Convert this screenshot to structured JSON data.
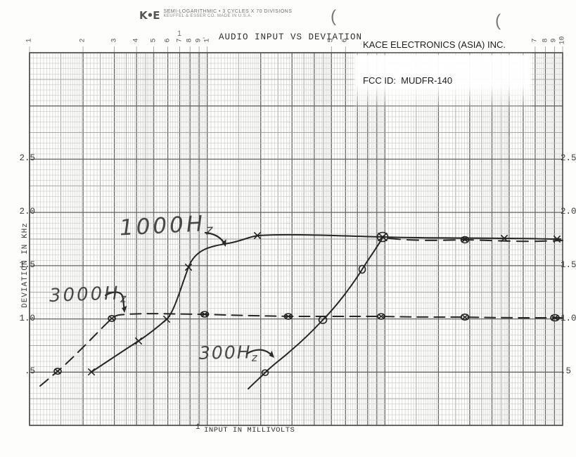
{
  "header": {
    "logo_text": "K•E",
    "paper_line1": "SEMI-LOGARITHMIC • 3 CYCLES X 70 DIVISIONS",
    "paper_line2": "KEUFFEL & ESSER CO.  MADE IN U.S.A.",
    "company": "KACE ELECTRONICS (ASIA) INC.",
    "fcc_id": "FCC ID:  MUDFR-140",
    "title": "AUDIO INPUT VS DEVIATION"
  },
  "axes": {
    "y_title": "DEVIATION IN KHz",
    "x_prefix": "1",
    "x_title": "INPUT IN MILLIVOLTS",
    "left_ticks": [
      "2.5",
      "2.0",
      "1.5",
      "1.0",
      ".5"
    ],
    "right_ticks": [
      "2.5",
      "2.0",
      "1.5",
      "1.0",
      ".5"
    ],
    "top_ticks": {
      "cycle1": [
        "1",
        "2",
        "3",
        "4",
        "5",
        "6",
        "7",
        "8",
        "9"
      ],
      "cycle2": [
        "1",
        "5",
        "6"
      ],
      "cycle3": [
        "7",
        "8",
        "9",
        "10"
      ]
    }
  },
  "curves": [
    {
      "id": "c1000",
      "label": "1000Hz",
      "label_main": "1000H",
      "label_sub": "z",
      "marker": "x-cross",
      "line": "solid"
    },
    {
      "id": "c3000",
      "label": "3000Hz",
      "label_main": "3000H",
      "label_sub": "z",
      "marker": "circled-x",
      "line": "dashed"
    },
    {
      "id": "c300",
      "label": "300Hz",
      "label_main": "300H",
      "label_sub": "z",
      "marker": "circle",
      "line": "solid-then-dashed"
    }
  ],
  "scan_marks": {
    "paren_left": "(",
    "paren_right": "(",
    "stray_one": "1",
    "stray_dash": "-"
  },
  "chart_data": {
    "type": "line",
    "title": "AUDIO INPUT VS DEVIATION",
    "xlabel": "INPUT IN MILLIVOLTS",
    "ylabel": "DEVIATION IN KHz",
    "x_scale": "log",
    "xlim_mV": [
      0.1,
      100
    ],
    "ylim_kHz": [
      0,
      3.5
    ],
    "y_tick_step": 0.5,
    "grid": "semi-log 3 cycles x 70 divisions",
    "legend_position": "handwritten labels on plot",
    "series": [
      {
        "name": "1000Hz",
        "style": "solid",
        "marker": "x",
        "points_mV_kHz": [
          [
            0.22,
            0.5
          ],
          [
            0.41,
            0.79
          ],
          [
            0.59,
            1.0
          ],
          [
            0.78,
            1.49
          ],
          [
            1.9,
            1.78
          ],
          [
            47,
            1.76
          ],
          [
            93,
            1.75
          ]
        ]
      },
      {
        "name": "3000Hz",
        "style": "dashed",
        "marker": "circled-x",
        "points_mV_kHz": [
          [
            0.14,
            0.51
          ],
          [
            0.29,
            1.0
          ],
          [
            0.97,
            1.04
          ],
          [
            2.9,
            1.02
          ],
          [
            9.5,
            1.02
          ],
          [
            28,
            1.02
          ],
          [
            90,
            1.01
          ]
        ]
      },
      {
        "name": "300Hz",
        "style": "solid rise then dashed plateau",
        "marker": "circle",
        "points_mV_kHz": [
          [
            2.1,
            0.5
          ],
          [
            4.5,
            0.99
          ],
          [
            7.4,
            1.47
          ],
          [
            9.7,
            1.77
          ],
          [
            28,
            1.74
          ],
          [
            95,
            1.74
          ]
        ]
      }
    ]
  }
}
